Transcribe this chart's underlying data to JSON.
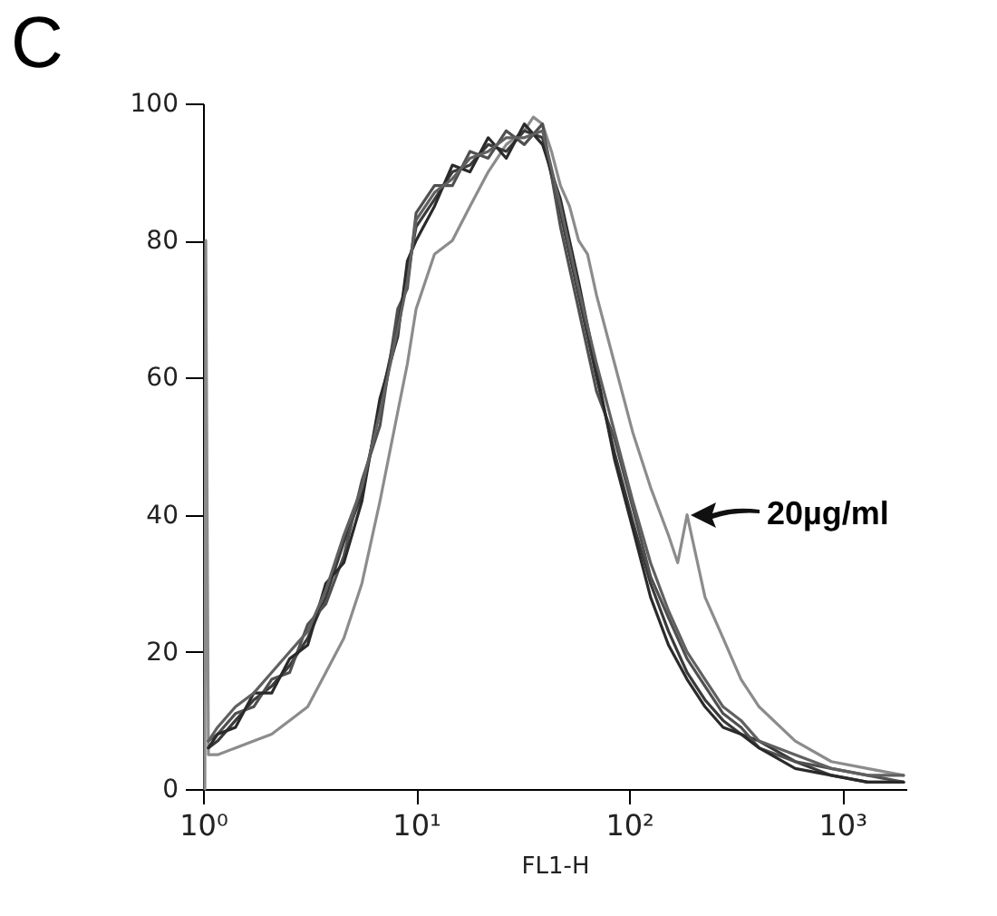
{
  "chart_data": {
    "type": "line",
    "xlabel": "FL1-H",
    "log": "x",
    "xlim": [
      1,
      2000
    ],
    "ylim": [
      0,
      100
    ],
    "xticks": [
      {
        "value": 1,
        "label": "10⁰"
      },
      {
        "value": 10,
        "label": "10¹"
      },
      {
        "value": 100,
        "label": "10²"
      },
      {
        "value": 1000,
        "label": "10³"
      }
    ],
    "yticks": [
      0,
      20,
      40,
      60,
      80,
      100
    ],
    "grid": false,
    "legend": false,
    "marker": "none",
    "line_style": "solid",
    "annotations": [
      "C",
      {
        "text": "20µg/ml",
        "x": 187,
        "y": 40
      }
    ],
    "series": [
      {
        "color": "#8c8c8c",
        "x": [
          1.02,
          1.03,
          1.06,
          1.17,
          1.42,
          1.73,
          2.1,
          2.55,
          3.1,
          3.77,
          4.58,
          5.57,
          6.77,
          8.2,
          9.1,
          10,
          12.2,
          14.8,
          17.9,
          21.8,
          26.5,
          32.2,
          35.5,
          39.2,
          43.2,
          47.6,
          52.5,
          57.9,
          63.8,
          70.3,
          85.5,
          104,
          126,
          153,
          169,
          187,
          227,
          276,
          335,
          407,
          602,
          889,
          1315,
          1940
        ],
        "values": [
          0,
          80,
          5,
          5,
          6,
          7,
          8,
          10,
          12,
          17,
          22,
          30,
          42,
          55,
          62,
          70,
          78,
          80,
          85,
          90,
          94,
          96,
          98,
          97,
          93,
          88,
          85,
          80,
          78,
          72,
          62,
          52,
          44,
          37,
          33,
          40,
          28,
          22,
          16,
          12,
          7,
          4,
          3,
          2
        ]
      },
      {
        "color": "#3a3a3a",
        "x": [
          1.06,
          1.17,
          1.42,
          1.73,
          2.1,
          2.55,
          3.1,
          3.77,
          4.58,
          5.57,
          6.77,
          8.2,
          9.1,
          10,
          12.2,
          14.8,
          17.9,
          21.8,
          26.5,
          32.2,
          39.2,
          47.6,
          57.9,
          70.3,
          85.5,
          104,
          126,
          153,
          187,
          227,
          276,
          335,
          407,
          602,
          889,
          1315,
          1940
        ],
        "values": [
          6,
          7,
          10,
          13,
          15,
          18,
          22,
          28,
          36,
          43,
          56,
          68,
          75,
          82,
          86,
          90,
          91,
          94,
          93,
          96,
          95,
          84,
          72,
          60,
          49,
          39,
          30,
          23,
          17,
          13,
          10,
          8,
          7,
          4,
          2,
          1,
          1
        ]
      },
      {
        "color": "#505050",
        "x": [
          1.06,
          1.17,
          1.42,
          1.73,
          2.1,
          2.55,
          3.1,
          3.77,
          4.58,
          5.57,
          6.77,
          8.2,
          9.1,
          10,
          12.2,
          14.8,
          17.9,
          21.8,
          26.5,
          32.2,
          39.2,
          47.6,
          57.9,
          70.3,
          85.5,
          104,
          126,
          153,
          187,
          227,
          276,
          335,
          407,
          602,
          889,
          1315,
          1940
        ],
        "values": [
          7,
          8,
          11,
          12,
          16,
          17,
          24,
          27,
          34,
          45,
          53,
          70,
          73,
          84,
          88,
          88,
          93,
          92,
          96,
          94,
          97,
          82,
          70,
          58,
          51,
          41,
          31,
          25,
          19,
          15,
          11,
          9,
          6,
          4,
          3,
          2,
          1
        ]
      },
      {
        "color": "#2a2a2a",
        "x": [
          1.06,
          1.17,
          1.42,
          1.73,
          2.1,
          2.55,
          3.1,
          3.77,
          4.58,
          5.57,
          6.77,
          8.2,
          9.1,
          10,
          12.2,
          14.8,
          17.9,
          21.8,
          26.5,
          32.2,
          39.2,
          47.6,
          57.9,
          70.3,
          85.5,
          104,
          126,
          153,
          187,
          227,
          276,
          335,
          407,
          602,
          889,
          1315,
          1940
        ],
        "values": [
          6,
          8,
          9,
          14,
          14,
          19,
          21,
          30,
          33,
          42,
          57,
          66,
          77,
          80,
          85,
          91,
          90,
          95,
          92,
          97,
          94,
          86,
          74,
          61,
          48,
          38,
          28,
          21,
          16,
          12,
          9,
          8,
          6,
          3,
          2,
          1,
          1
        ]
      },
      {
        "color": "#606060",
        "x": [
          1.06,
          1.17,
          1.42,
          1.73,
          2.1,
          2.55,
          3.1,
          3.77,
          4.58,
          5.57,
          6.77,
          8.2,
          9.1,
          10,
          12.2,
          14.8,
          17.9,
          21.8,
          26.5,
          32.2,
          39.2,
          47.6,
          57.9,
          70.3,
          85.5,
          104,
          126,
          153,
          187,
          227,
          276,
          335,
          407,
          602,
          889,
          1315,
          1940
        ],
        "values": [
          7,
          9,
          12,
          14,
          17,
          20,
          23,
          29,
          37,
          44,
          55,
          67,
          74,
          83,
          87,
          89,
          92,
          93,
          95,
          95,
          96,
          85,
          73,
          62,
          52,
          42,
          33,
          26,
          20,
          16,
          12,
          10,
          7,
          5,
          3,
          2,
          2
        ]
      }
    ]
  }
}
